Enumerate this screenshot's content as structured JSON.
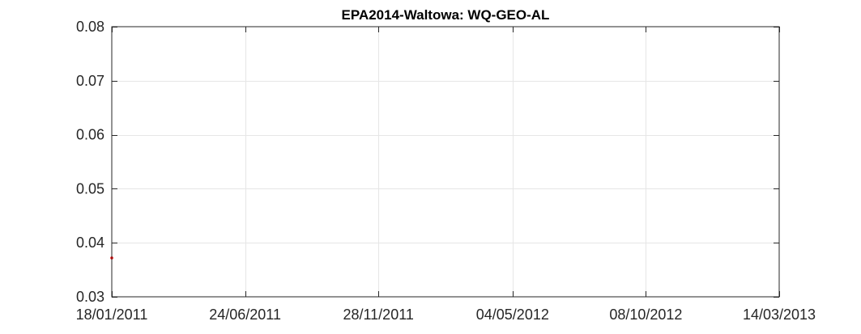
{
  "chart_data": {
    "type": "scatter",
    "title": "EPA2014-Waltowa: WQ-GEO-AL",
    "xlabel": "",
    "ylabel": "",
    "x_tick_labels": [
      "18/01/2011",
      "24/06/2011",
      "28/11/2011",
      "04/05/2012",
      "08/10/2012",
      "14/03/2013"
    ],
    "x_ticks": [
      "2011-01-18",
      "2011-06-24",
      "2011-11-28",
      "2012-05-04",
      "2012-10-08",
      "2013-03-14"
    ],
    "xlim": [
      "2011-01-18",
      "2013-03-14"
    ],
    "y_tick_labels": [
      "0.03",
      "0.04",
      "0.05",
      "0.06",
      "0.07",
      "0.08"
    ],
    "y_ticks": [
      0.03,
      0.04,
      0.05,
      0.06,
      0.07,
      0.08
    ],
    "ylim": [
      0.03,
      0.08
    ],
    "grid": true,
    "series": [
      {
        "color": "#ff0000",
        "points": [
          {
            "x": "2011-01-18",
            "y": 0.0372
          }
        ]
      }
    ]
  }
}
